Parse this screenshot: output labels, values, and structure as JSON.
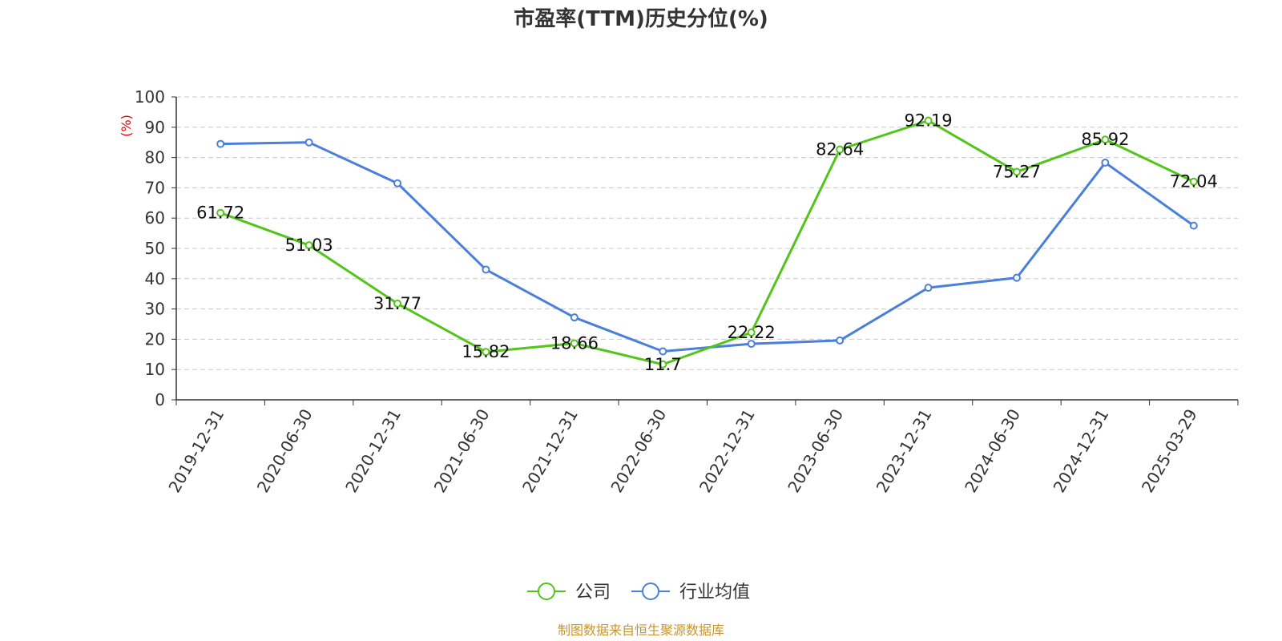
{
  "title": "市盈率(TTM)历史分位(%)",
  "source": "制图数据来自恒生聚源数据库",
  "colors": {
    "company": "#52c41a",
    "industry": "#4a7fdc",
    "unit": "#e00000",
    "source": "#c9952b"
  },
  "chart_data": {
    "type": "line",
    "title": "市盈率(TTM)历史分位(%)",
    "xlabel": "",
    "ylabel": "(%)",
    "ylim": [
      0,
      100
    ],
    "yticks": [
      0,
      10,
      20,
      30,
      40,
      50,
      60,
      70,
      80,
      90,
      100
    ],
    "grid": true,
    "legend_position": "bottom",
    "categories": [
      "2019-12-31",
      "2020-06-30",
      "2020-12-31",
      "2021-06-30",
      "2021-12-31",
      "2022-06-30",
      "2022-12-31",
      "2023-06-30",
      "2023-12-31",
      "2024-06-30",
      "2024-12-31",
      "2025-03-29"
    ],
    "series": [
      {
        "name": "公司",
        "values": [
          61.72,
          51.03,
          31.77,
          15.82,
          18.66,
          11.7,
          22.22,
          82.64,
          92.19,
          75.27,
          85.92,
          72.04
        ],
        "labels": [
          "61.72",
          "51.03",
          "31.77",
          "15.82",
          "18.66",
          "11.7",
          "22.22",
          "82.64",
          "92.19",
          "75.27",
          "85.92",
          "72.04"
        ]
      },
      {
        "name": "行业均值",
        "values": [
          84.5,
          85.0,
          71.5,
          43.0,
          27.2,
          16.0,
          18.5,
          19.6,
          37.0,
          40.3,
          78.3,
          57.5
        ]
      }
    ]
  }
}
